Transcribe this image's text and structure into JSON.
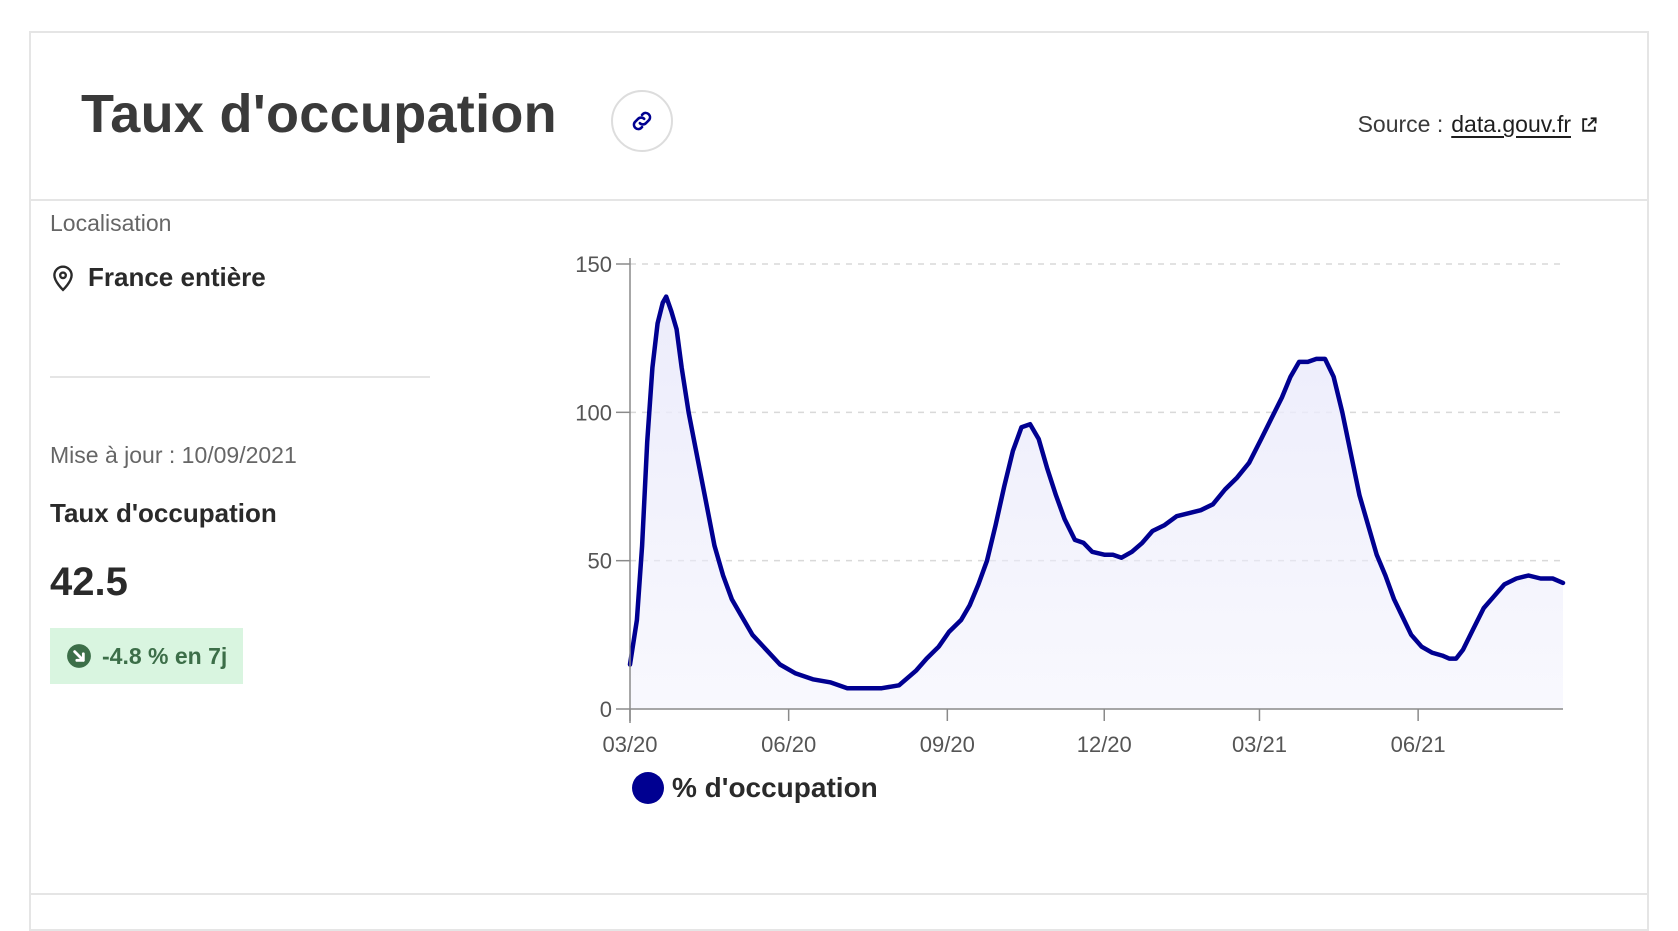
{
  "header": {
    "title": "Taux d'occupation",
    "source_prefix": "Source :",
    "source_link": "data.gouv.fr",
    "link_icon": "link-icon",
    "external_icon": "external-link-icon"
  },
  "side": {
    "location_label": "Localisation",
    "location_value": "France entière",
    "location_icon": "map-pin-icon",
    "update_text": "Mise à jour : 10/09/2021",
    "kpi_label": "Taux d'occupation",
    "kpi_value": "42.5",
    "trend_text": "-4.8 % en 7j",
    "trend_icon": "arrow-down-right-icon",
    "trend_color": "#3c6e48",
    "trend_bg": "#d9f5e0"
  },
  "colors": {
    "series": "#000091",
    "fill": "#ececfb",
    "grid": "#d9d9d9",
    "axis": "#8a8a8a"
  },
  "chart_data": {
    "type": "area",
    "title": "",
    "xlabel": "",
    "ylabel": "",
    "ylim": [
      0,
      150
    ],
    "yticks": [
      0,
      50,
      100,
      150
    ],
    "xlim": [
      "2020-03-18",
      "2021-09-10"
    ],
    "xticks": [
      {
        "date": "2020-03-18",
        "label": "03/20"
      },
      {
        "date": "2020-06-18",
        "label": "06/20"
      },
      {
        "date": "2020-09-18",
        "label": "09/20"
      },
      {
        "date": "2020-12-18",
        "label": "12/20"
      },
      {
        "date": "2021-03-18",
        "label": "03/21"
      },
      {
        "date": "2021-06-18",
        "label": "06/21"
      }
    ],
    "grid": true,
    "legend": "bottom",
    "series": [
      {
        "name": "% d'occupation",
        "points": [
          [
            "2020-03-18",
            15
          ],
          [
            "2020-03-22",
            30
          ],
          [
            "2020-03-25",
            55
          ],
          [
            "2020-03-28",
            90
          ],
          [
            "2020-03-31",
            115
          ],
          [
            "2020-04-03",
            130
          ],
          [
            "2020-04-06",
            137
          ],
          [
            "2020-04-08",
            139
          ],
          [
            "2020-04-11",
            134
          ],
          [
            "2020-04-14",
            128
          ],
          [
            "2020-04-17",
            115
          ],
          [
            "2020-04-21",
            100
          ],
          [
            "2020-04-25",
            88
          ],
          [
            "2020-05-01",
            70
          ],
          [
            "2020-05-06",
            55
          ],
          [
            "2020-05-11",
            45
          ],
          [
            "2020-05-16",
            37
          ],
          [
            "2020-05-21",
            32
          ],
          [
            "2020-05-28",
            25
          ],
          [
            "2020-06-05",
            20
          ],
          [
            "2020-06-13",
            15
          ],
          [
            "2020-06-22",
            12
          ],
          [
            "2020-07-02",
            10
          ],
          [
            "2020-07-12",
            9
          ],
          [
            "2020-07-22",
            7
          ],
          [
            "2020-08-01",
            7
          ],
          [
            "2020-08-11",
            7
          ],
          [
            "2020-08-21",
            8
          ],
          [
            "2020-08-31",
            13
          ],
          [
            "2020-09-06",
            17
          ],
          [
            "2020-09-13",
            21
          ],
          [
            "2020-09-19",
            26
          ],
          [
            "2020-09-26",
            30
          ],
          [
            "2020-10-01",
            35
          ],
          [
            "2020-10-06",
            42
          ],
          [
            "2020-10-11",
            50
          ],
          [
            "2020-10-16",
            62
          ],
          [
            "2020-10-21",
            75
          ],
          [
            "2020-10-26",
            87
          ],
          [
            "2020-10-31",
            95
          ],
          [
            "2020-11-05",
            96
          ],
          [
            "2020-11-10",
            91
          ],
          [
            "2020-11-15",
            81
          ],
          [
            "2020-11-20",
            72
          ],
          [
            "2020-11-25",
            64
          ],
          [
            "2020-12-01",
            57
          ],
          [
            "2020-12-06",
            56
          ],
          [
            "2020-12-11",
            53
          ],
          [
            "2020-12-18",
            52
          ],
          [
            "2020-12-23",
            52
          ],
          [
            "2020-12-28",
            51
          ],
          [
            "2021-01-03",
            53
          ],
          [
            "2021-01-09",
            56
          ],
          [
            "2021-01-15",
            60
          ],
          [
            "2021-01-22",
            62
          ],
          [
            "2021-01-29",
            65
          ],
          [
            "2021-02-05",
            66
          ],
          [
            "2021-02-12",
            67
          ],
          [
            "2021-02-19",
            69
          ],
          [
            "2021-02-26",
            74
          ],
          [
            "2021-03-05",
            78
          ],
          [
            "2021-03-12",
            83
          ],
          [
            "2021-03-19",
            91
          ],
          [
            "2021-03-25",
            98
          ],
          [
            "2021-03-31",
            105
          ],
          [
            "2021-04-05",
            112
          ],
          [
            "2021-04-10",
            117
          ],
          [
            "2021-04-15",
            117
          ],
          [
            "2021-04-20",
            118
          ],
          [
            "2021-04-25",
            118
          ],
          [
            "2021-04-30",
            112
          ],
          [
            "2021-05-05",
            100
          ],
          [
            "2021-05-10",
            86
          ],
          [
            "2021-05-15",
            72
          ],
          [
            "2021-05-20",
            62
          ],
          [
            "2021-05-25",
            52
          ],
          [
            "2021-05-30",
            45
          ],
          [
            "2021-06-04",
            37
          ],
          [
            "2021-06-09",
            31
          ],
          [
            "2021-06-14",
            25
          ],
          [
            "2021-06-20",
            21
          ],
          [
            "2021-06-26",
            19
          ],
          [
            "2021-07-02",
            18
          ],
          [
            "2021-07-06",
            17
          ],
          [
            "2021-07-10",
            17
          ],
          [
            "2021-07-14",
            20
          ],
          [
            "2021-07-20",
            27
          ],
          [
            "2021-07-26",
            34
          ],
          [
            "2021-08-01",
            38
          ],
          [
            "2021-08-07",
            42
          ],
          [
            "2021-08-14",
            44
          ],
          [
            "2021-08-21",
            45
          ],
          [
            "2021-08-28",
            44
          ],
          [
            "2021-09-04",
            44
          ],
          [
            "2021-09-10",
            42.5
          ]
        ]
      }
    ]
  }
}
